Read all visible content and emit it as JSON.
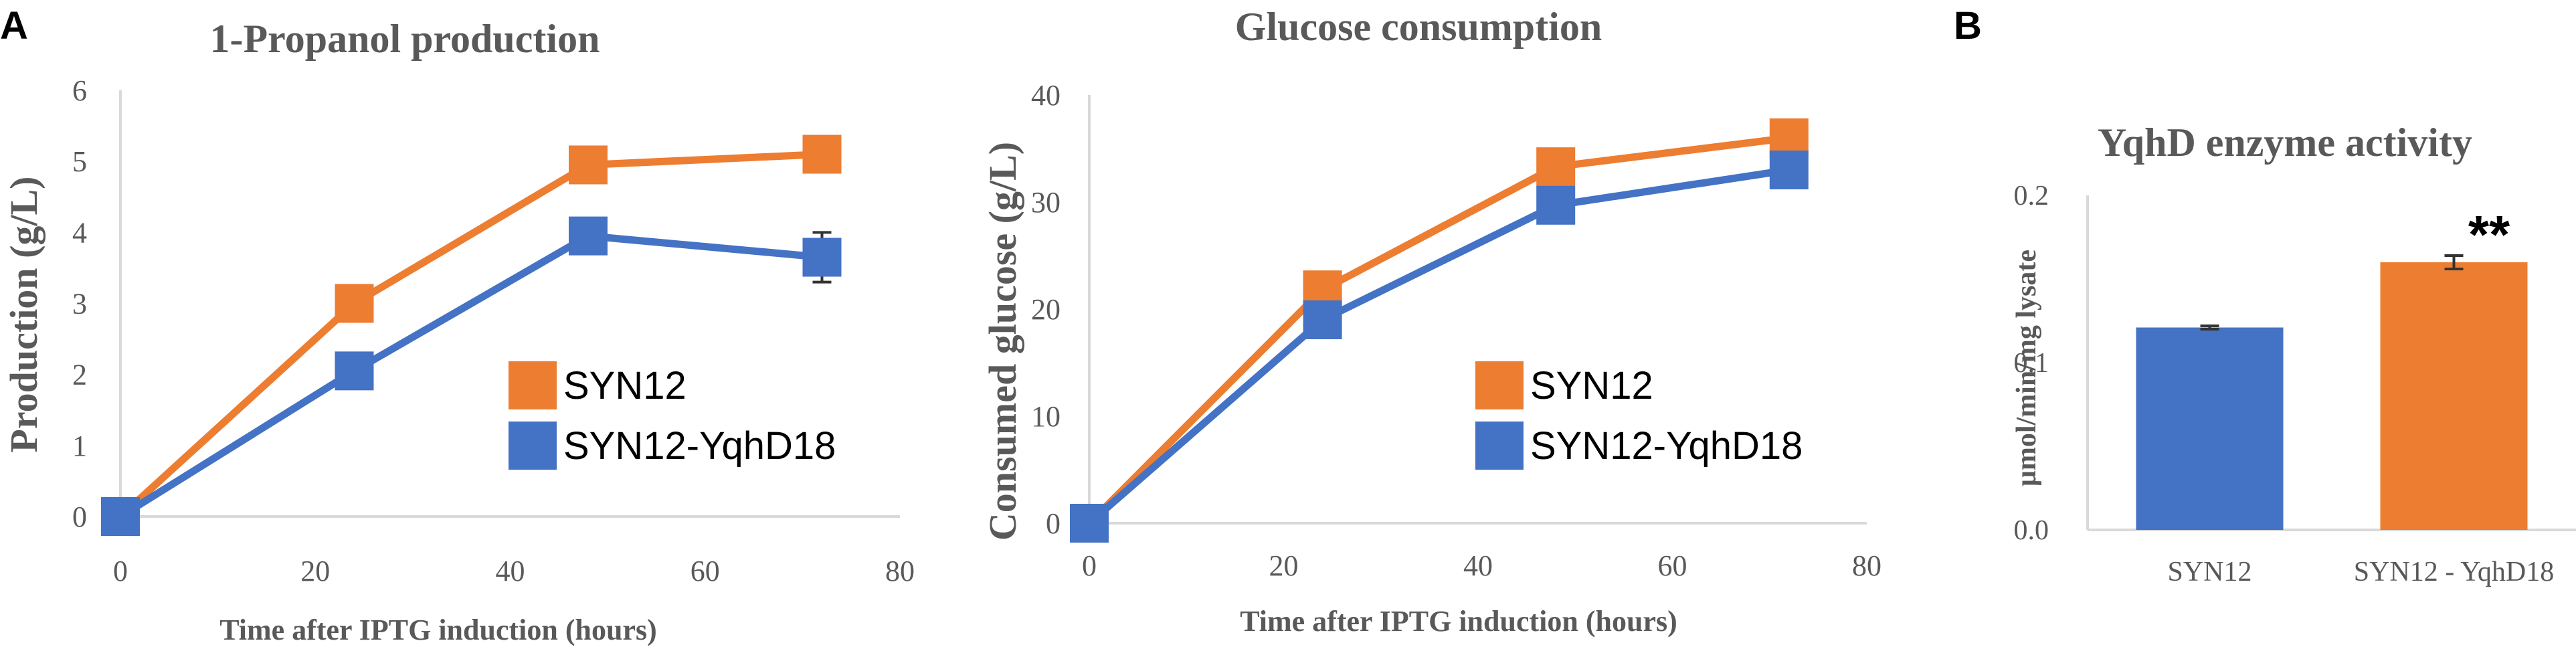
{
  "panels": {
    "a": "A",
    "b": "B"
  },
  "chart_data": [
    {
      "type": "line",
      "title": "1-Propanol production",
      "xlabel": "Time after IPTG induction (hours)",
      "ylabel": "Production (g/L)",
      "xlim": [
        0,
        80
      ],
      "ylim": [
        0,
        6
      ],
      "xticks": [
        "0",
        "20",
        "40",
        "60",
        "80"
      ],
      "yticks": [
        "0",
        "1",
        "2",
        "3",
        "4",
        "5",
        "6"
      ],
      "x": [
        0,
        24,
        48,
        72
      ],
      "series": [
        {
          "name": "SYN12",
          "color": "#ED7D31",
          "values": [
            0,
            3.0,
            4.95,
            5.1
          ],
          "errors": [
            0,
            0.05,
            0.05,
            0.1
          ]
        },
        {
          "name": "SYN12-YqhD18",
          "color": "#4472C4",
          "values": [
            0,
            2.05,
            3.95,
            3.65
          ],
          "errors": [
            0,
            0.05,
            0.1,
            0.35
          ]
        }
      ]
    },
    {
      "type": "line",
      "title": "Glucose consumption",
      "xlabel": "Time after IPTG induction (hours)",
      "ylabel": "Consumed glucose (g/L)",
      "xlim": [
        0,
        80
      ],
      "ylim": [
        0,
        40
      ],
      "xticks": [
        "0",
        "20",
        "40",
        "60",
        "80"
      ],
      "yticks": [
        "0",
        "10",
        "20",
        "30",
        "40"
      ],
      "x": [
        0,
        24,
        48,
        72
      ],
      "series": [
        {
          "name": "SYN12",
          "color": "#ED7D31",
          "values": [
            0,
            21.8,
            33.3,
            36.0
          ],
          "errors": [
            0,
            0.3,
            0.3,
            0.3
          ]
        },
        {
          "name": "SYN12-YqhD18",
          "color": "#4472C4",
          "values": [
            0,
            19.0,
            29.7,
            33.0
          ],
          "errors": [
            0,
            0.3,
            0.3,
            0.3
          ]
        }
      ]
    },
    {
      "type": "bar",
      "title": "YqhD enzyme activity",
      "ylabel": "μmol/min/mg lysate",
      "ylim": [
        0,
        0.2
      ],
      "yticks": [
        "0.0",
        "0.1",
        "0.2"
      ],
      "categories": [
        "SYN12",
        "SYN12 - YqhD18"
      ],
      "values": [
        0.121,
        0.16
      ],
      "errors": [
        0.001,
        0.004
      ],
      "colors": [
        "#4472C4",
        "#ED7D31"
      ],
      "annotation": "**"
    }
  ]
}
